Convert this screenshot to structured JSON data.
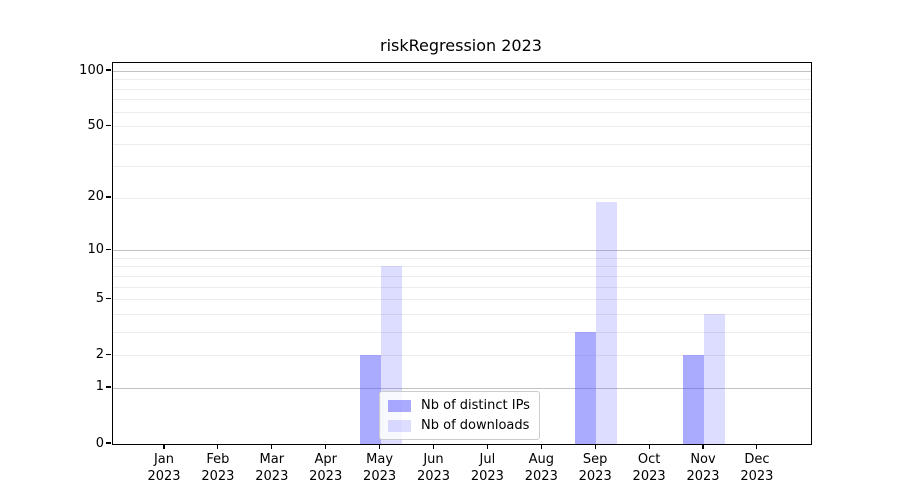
{
  "title": "riskRegression 2023",
  "chart_data": {
    "type": "bar",
    "title": "riskRegression 2023",
    "categories": [
      "Jan 2023",
      "Feb 2023",
      "Mar 2023",
      "Apr 2023",
      "May 2023",
      "Jun 2023",
      "Jul 2023",
      "Aug 2023",
      "Sep 2023",
      "Oct 2023",
      "Nov 2023",
      "Dec 2023"
    ],
    "series": [
      {
        "name": "Nb of distinct IPs",
        "fill": "rgba(85,85,255,0.5)",
        "values": [
          0,
          0,
          0,
          0,
          2,
          0,
          0,
          0,
          3,
          0,
          2,
          0
        ]
      },
      {
        "name": "Nb of downloads",
        "fill": "rgba(85,85,255,0.2)",
        "values": [
          0,
          0,
          0,
          0,
          8,
          0,
          0,
          0,
          19,
          0,
          4,
          0
        ]
      }
    ],
    "xlabel": "",
    "ylabel": "",
    "y_axis": {
      "scale": "log1p",
      "tick_values": [
        0,
        1,
        2,
        5,
        10,
        20,
        50,
        100
      ],
      "tick_labels": [
        "0",
        "1",
        "2",
        "5",
        "10",
        "20",
        "50",
        "100"
      ],
      "major_gridlines": [
        1,
        10,
        100
      ],
      "minor_gridlines": [
        2,
        3,
        4,
        5,
        6,
        7,
        8,
        9,
        20,
        30,
        40,
        50,
        60,
        70,
        80,
        90
      ],
      "range": [
        0,
        110
      ]
    },
    "grid": true,
    "legend_position": "lower center-left inside plot",
    "colors": {
      "bar_base": "#5555ff",
      "axis": "#000000",
      "major_grid": "#c2c2c2",
      "minor_grid": "#ececec",
      "legend_border": "#cccccc",
      "background": "#ffffff"
    }
  }
}
